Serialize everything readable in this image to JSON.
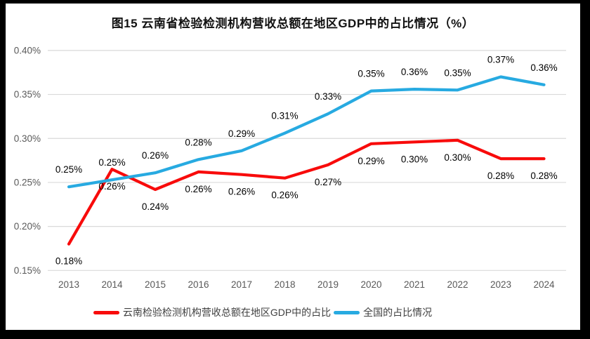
{
  "title": "图15 云南省检验检测机构营收总额在地区GDP中的占比情况（%）",
  "chart_data": {
    "type": "line",
    "title": "图15 云南省检验检测机构营收总额在地区GDP中的占比情况（%）",
    "categories": [
      "2013",
      "2014",
      "2015",
      "2016",
      "2017",
      "2018",
      "2019",
      "2020",
      "2021",
      "2022",
      "2023",
      "2024"
    ],
    "series": [
      {
        "name": "云南检验检测机构营收总额在地区GDP中的占比",
        "color": "#F80B0B",
        "labels": [
          "0.18%",
          "0.26%",
          "0.24%",
          "0.26%",
          "0.26%",
          "0.26%",
          "0.27%",
          "0.29%",
          "0.30%",
          "0.30%",
          "0.28%",
          "0.28%"
        ],
        "values": [
          0.18,
          0.26,
          0.24,
          0.26,
          0.26,
          0.26,
          0.27,
          0.29,
          0.3,
          0.3,
          0.28,
          0.28
        ],
        "plot_values": [
          0.18,
          0.265,
          0.242,
          0.262,
          0.259,
          0.255,
          0.27,
          0.294,
          0.296,
          0.298,
          0.277,
          0.277
        ],
        "label_position": "below"
      },
      {
        "name": "全国的占比情况",
        "color": "#27AAE1",
        "labels": [
          "0.25%",
          "0.25%",
          "0.26%",
          "0.28%",
          "0.29%",
          "0.31%",
          "0.33%",
          "0.35%",
          "0.36%",
          "0.35%",
          "0.37%",
          "0.36%"
        ],
        "values": [
          0.25,
          0.25,
          0.26,
          0.28,
          0.29,
          0.31,
          0.33,
          0.35,
          0.36,
          0.35,
          0.37,
          0.36
        ],
        "plot_values": [
          0.245,
          0.253,
          0.261,
          0.276,
          0.286,
          0.306,
          0.328,
          0.354,
          0.356,
          0.355,
          0.37,
          0.361
        ],
        "label_position": "above"
      }
    ],
    "y_ticks": [
      {
        "value": 0.15,
        "label": "0.15%"
      },
      {
        "value": 0.2,
        "label": "0.20%"
      },
      {
        "value": 0.25,
        "label": "0.25%"
      },
      {
        "value": 0.3,
        "label": "0.30%"
      },
      {
        "value": 0.35,
        "label": "0.35%"
      },
      {
        "value": 0.4,
        "label": "0.40%"
      }
    ],
    "ylim": [
      0.15,
      0.4
    ],
    "grid": true,
    "legend_position": "bottom",
    "xlabel": "",
    "ylabel": "",
    "colors": {
      "gridline": "#D9D9D9",
      "tick_text": "#595959",
      "data_label_text": "#000000"
    }
  }
}
